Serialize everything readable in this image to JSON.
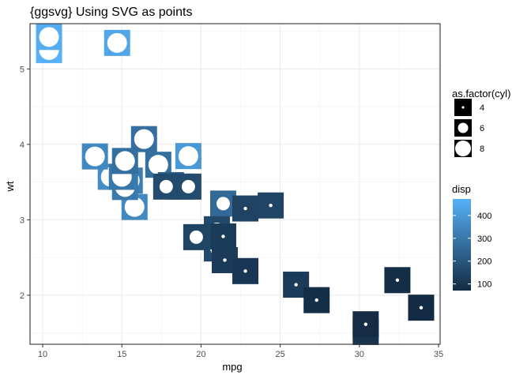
{
  "chart_data": {
    "type": "scatter",
    "title": "{ggsvg} Using SVG as points",
    "xlabel": "mpg",
    "ylabel": "wt",
    "xlim": [
      9.2,
      35.1
    ],
    "ylim": [
      1.35,
      5.6
    ],
    "xticks": [
      10,
      15,
      20,
      25,
      30,
      35
    ],
    "yticks": [
      2,
      3,
      4,
      5
    ],
    "grid": true,
    "size_legend": {
      "title": "as.factor(cyl)",
      "entries": [
        {
          "label": "4",
          "cyl": 4
        },
        {
          "label": "6",
          "cyl": 6
        },
        {
          "label": "8",
          "cyl": 8
        }
      ]
    },
    "color_legend": {
      "title": "disp",
      "ticks": [
        100,
        200,
        300,
        400
      ],
      "range": [
        71.1,
        472
      ],
      "low_color": "#132B43",
      "high_color": "#56B1F7"
    },
    "points": [
      {
        "mpg": 21.0,
        "wt": 2.62,
        "cyl": 6,
        "disp": 160.0
      },
      {
        "mpg": 21.0,
        "wt": 2.875,
        "cyl": 6,
        "disp": 160.0
      },
      {
        "mpg": 22.8,
        "wt": 2.32,
        "cyl": 4,
        "disp": 108.0
      },
      {
        "mpg": 21.4,
        "wt": 3.215,
        "cyl": 6,
        "disp": 258.0
      },
      {
        "mpg": 18.7,
        "wt": 3.44,
        "cyl": 8,
        "disp": 360.0
      },
      {
        "mpg": 18.1,
        "wt": 3.46,
        "cyl": 6,
        "disp": 225.0
      },
      {
        "mpg": 14.3,
        "wt": 3.57,
        "cyl": 8,
        "disp": 360.0
      },
      {
        "mpg": 24.4,
        "wt": 3.19,
        "cyl": 4,
        "disp": 146.7
      },
      {
        "mpg": 22.8,
        "wt": 3.15,
        "cyl": 4,
        "disp": 140.8
      },
      {
        "mpg": 19.2,
        "wt": 3.44,
        "cyl": 6,
        "disp": 167.6
      },
      {
        "mpg": 17.8,
        "wt": 3.44,
        "cyl": 6,
        "disp": 167.6
      },
      {
        "mpg": 16.4,
        "wt": 4.07,
        "cyl": 8,
        "disp": 275.8
      },
      {
        "mpg": 17.3,
        "wt": 3.73,
        "cyl": 8,
        "disp": 275.8
      },
      {
        "mpg": 15.2,
        "wt": 3.78,
        "cyl": 8,
        "disp": 275.8
      },
      {
        "mpg": 10.4,
        "wt": 5.25,
        "cyl": 8,
        "disp": 472.0
      },
      {
        "mpg": 10.4,
        "wt": 5.424,
        "cyl": 8,
        "disp": 460.0
      },
      {
        "mpg": 14.7,
        "wt": 5.345,
        "cyl": 8,
        "disp": 440.0
      },
      {
        "mpg": 32.4,
        "wt": 2.2,
        "cyl": 4,
        "disp": 78.7
      },
      {
        "mpg": 30.4,
        "wt": 1.615,
        "cyl": 4,
        "disp": 75.7
      },
      {
        "mpg": 33.9,
        "wt": 1.835,
        "cyl": 4,
        "disp": 71.1
      },
      {
        "mpg": 21.5,
        "wt": 2.465,
        "cyl": 4,
        "disp": 120.1
      },
      {
        "mpg": 15.5,
        "wt": 3.52,
        "cyl": 8,
        "disp": 318.0
      },
      {
        "mpg": 15.2,
        "wt": 3.435,
        "cyl": 8,
        "disp": 304.0
      },
      {
        "mpg": 13.3,
        "wt": 3.84,
        "cyl": 8,
        "disp": 350.0
      },
      {
        "mpg": 19.2,
        "wt": 3.845,
        "cyl": 8,
        "disp": 400.0
      },
      {
        "mpg": 27.3,
        "wt": 1.935,
        "cyl": 4,
        "disp": 79.0
      },
      {
        "mpg": 26.0,
        "wt": 2.14,
        "cyl": 4,
        "disp": 120.3
      },
      {
        "mpg": 30.4,
        "wt": 1.513,
        "cyl": 4,
        "disp": 95.1
      },
      {
        "mpg": 15.8,
        "wt": 3.17,
        "cyl": 8,
        "disp": 351.0
      },
      {
        "mpg": 19.7,
        "wt": 2.77,
        "cyl": 6,
        "disp": 145.0
      },
      {
        "mpg": 15.0,
        "wt": 3.57,
        "cyl": 8,
        "disp": 301.0
      },
      {
        "mpg": 21.4,
        "wt": 2.78,
        "cyl": 4,
        "disp": 121.0
      }
    ]
  }
}
